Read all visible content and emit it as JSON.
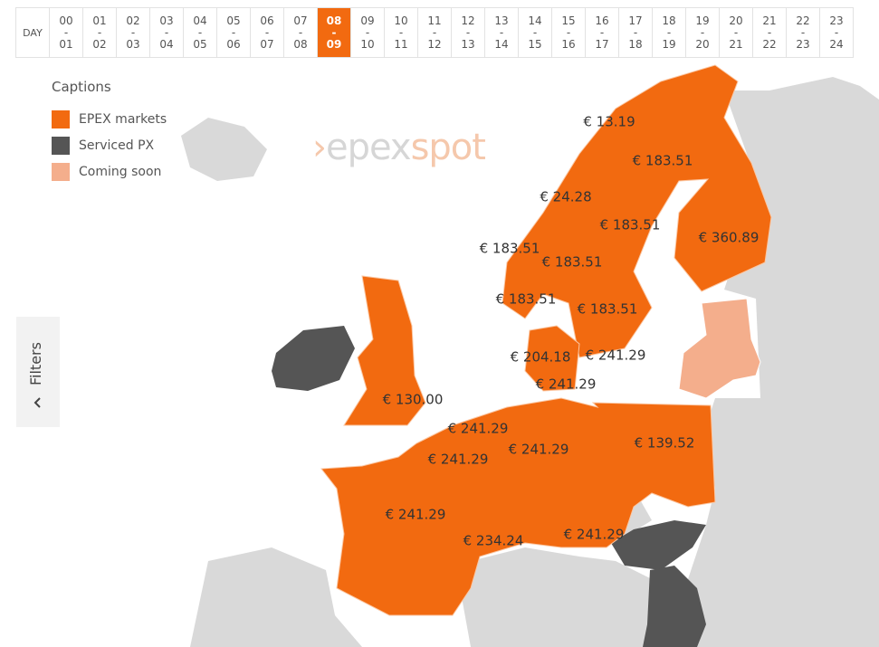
{
  "hour_bar": {
    "day_label": "DAY",
    "separator": "-",
    "slots": [
      {
        "start": "00",
        "end": "01"
      },
      {
        "start": "01",
        "end": "02"
      },
      {
        "start": "02",
        "end": "03"
      },
      {
        "start": "03",
        "end": "04"
      },
      {
        "start": "04",
        "end": "05"
      },
      {
        "start": "05",
        "end": "06"
      },
      {
        "start": "06",
        "end": "07"
      },
      {
        "start": "07",
        "end": "08"
      },
      {
        "start": "08",
        "end": "09",
        "selected": true
      },
      {
        "start": "09",
        "end": "10"
      },
      {
        "start": "10",
        "end": "11"
      },
      {
        "start": "11",
        "end": "12"
      },
      {
        "start": "12",
        "end": "13"
      },
      {
        "start": "13",
        "end": "14"
      },
      {
        "start": "14",
        "end": "15"
      },
      {
        "start": "15",
        "end": "16"
      },
      {
        "start": "16",
        "end": "17"
      },
      {
        "start": "17",
        "end": "18"
      },
      {
        "start": "18",
        "end": "19"
      },
      {
        "start": "19",
        "end": "20"
      },
      {
        "start": "20",
        "end": "21"
      },
      {
        "start": "21",
        "end": "22"
      },
      {
        "start": "22",
        "end": "23"
      },
      {
        "start": "23",
        "end": "24"
      }
    ]
  },
  "legend": {
    "title": "Captions",
    "items": [
      {
        "label": "EPEX markets",
        "color": "#f26a10"
      },
      {
        "label": "Serviced PX",
        "color": "#555555"
      },
      {
        "label": "Coming soon",
        "color": "#f4ae8c"
      }
    ]
  },
  "logo": {
    "first": "epex",
    "second": "spot"
  },
  "filters": {
    "label": "Filters"
  },
  "prices": [
    "€ 13.19",
    "€ 183.51",
    "€ 24.28",
    "€ 183.51",
    "€ 360.89",
    "€ 183.51",
    "€ 183.51",
    "€ 183.51",
    "€ 183.51",
    "€ 204.18",
    "€ 241.29",
    "€ 241.29",
    "€ 130.00",
    "€ 241.29",
    "€ 241.29",
    "€ 241.29",
    "€ 139.52",
    "€ 241.29",
    "€ 234.24",
    "€ 241.29"
  ]
}
